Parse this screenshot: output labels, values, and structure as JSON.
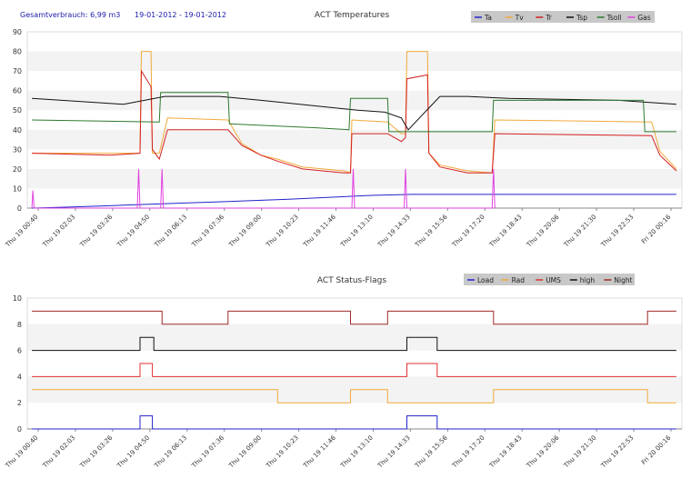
{
  "header": {
    "consumption": "Gesamtverbrauch: 6,99 m3",
    "date_range": "19-01-2012 - 19-01-2012"
  },
  "colors": {
    "Ta": "#2222cc",
    "Tv": "#f2a93b",
    "Tr": "#d42020",
    "Tsp": "#111111",
    "Tsoll": "#2d7a2d",
    "Gas": "#e040e0",
    "Load": "#2222cc",
    "Rad": "#f2a93b",
    "UMS": "#e03030",
    "high": "#111111",
    "Night": "#a02828",
    "band": "#f3f3f3",
    "legend_bg": "#c8c8c8"
  },
  "chart_data": [
    {
      "type": "line",
      "title": "ACT Temperatures",
      "ylim": [
        0,
        90
      ],
      "yticks": [
        0,
        10,
        20,
        30,
        40,
        50,
        60,
        70,
        80,
        90
      ],
      "xlim": [
        0.5,
        24.3
      ],
      "xticks": [
        "Thu 19 00:40",
        "Thu 19 02:03",
        "Thu 19 03:26",
        "Thu 19 04:50",
        "Thu 19 06:13",
        "Thu 19 07:36",
        "Thu 19 09:00",
        "Thu 19 10:23",
        "Thu 19 11:46",
        "Thu 19 13:10",
        "Thu 19 14:33",
        "Thu 19 15:56",
        "Thu 19 17:20",
        "Thu 19 18:43",
        "Thu 19 20:06",
        "Thu 19 21:30",
        "Thu 19 22:53",
        "Fri 20 00:16"
      ],
      "legend": [
        "Ta",
        "Tv",
        "Tr",
        "Tsp",
        "Tsoll",
        "Gas"
      ],
      "legend_position": "top-right",
      "grid": "horizontal bands",
      "series": [
        {
          "name": "Ta",
          "values": [
            [
              0.67,
              0
            ],
            [
              2.0,
              0.5
            ],
            [
              4.0,
              1.5
            ],
            [
              6.0,
              2.5
            ],
            [
              8.0,
              3.5
            ],
            [
              10.0,
              4.5
            ],
            [
              11.5,
              5.5
            ],
            [
              13.0,
              6.5
            ],
            [
              14.5,
              7
            ],
            [
              16.0,
              7
            ],
            [
              18.0,
              7
            ],
            [
              20.0,
              7
            ],
            [
              22.0,
              7
            ],
            [
              24.1,
              7
            ]
          ]
        },
        {
          "name": "Tv",
          "values": [
            [
              0.67,
              28
            ],
            [
              3.5,
              28
            ],
            [
              4.6,
              28
            ],
            [
              4.65,
              80
            ],
            [
              5.0,
              80
            ],
            [
              5.05,
              28
            ],
            [
              5.3,
              28
            ],
            [
              5.6,
              46
            ],
            [
              7.8,
              45
            ],
            [
              8.3,
              33
            ],
            [
              9.0,
              27
            ],
            [
              9.6,
              25
            ],
            [
              10.5,
              21
            ],
            [
              12.0,
              19
            ],
            [
              12.25,
              18
            ],
            [
              12.3,
              45
            ],
            [
              13.6,
              44
            ],
            [
              14.1,
              38
            ],
            [
              14.25,
              38
            ],
            [
              14.3,
              80
            ],
            [
              15.05,
              80
            ],
            [
              15.1,
              28
            ],
            [
              15.5,
              22
            ],
            [
              16.5,
              19
            ],
            [
              17.4,
              18
            ],
            [
              17.5,
              45
            ],
            [
              23.2,
              44
            ],
            [
              23.5,
              29
            ],
            [
              24.1,
              20
            ]
          ]
        },
        {
          "name": "Tr",
          "values": [
            [
              0.67,
              28
            ],
            [
              3.5,
              27
            ],
            [
              4.6,
              28
            ],
            [
              4.65,
              70
            ],
            [
              5.0,
              62
            ],
            [
              5.05,
              30
            ],
            [
              5.3,
              25
            ],
            [
              5.6,
              40
            ],
            [
              7.8,
              40
            ],
            [
              8.3,
              32
            ],
            [
              9.0,
              27
            ],
            [
              9.6,
              24
            ],
            [
              10.5,
              20
            ],
            [
              12.0,
              18
            ],
            [
              12.25,
              18
            ],
            [
              12.3,
              38
            ],
            [
              13.6,
              38
            ],
            [
              14.1,
              34
            ],
            [
              14.25,
              36
            ],
            [
              14.3,
              66
            ],
            [
              15.05,
              68
            ],
            [
              15.1,
              28
            ],
            [
              15.5,
              21
            ],
            [
              16.5,
              18
            ],
            [
              17.4,
              18
            ],
            [
              17.5,
              38
            ],
            [
              23.2,
              37
            ],
            [
              23.5,
              27
            ],
            [
              24.1,
              19
            ]
          ]
        },
        {
          "name": "Tsp",
          "values": [
            [
              0.67,
              56
            ],
            [
              4.0,
              53
            ],
            [
              5.5,
              57
            ],
            [
              7.5,
              57
            ],
            [
              9.0,
              55
            ],
            [
              12.5,
              50
            ],
            [
              13.5,
              49
            ],
            [
              14.1,
              46
            ],
            [
              14.35,
              40
            ],
            [
              15.5,
              57
            ],
            [
              16.5,
              57
            ],
            [
              18.0,
              56
            ],
            [
              22.0,
              55
            ],
            [
              24.1,
              53
            ]
          ]
        },
        {
          "name": "Tsoll",
          "values": [
            [
              0.67,
              45
            ],
            [
              5.3,
              44
            ],
            [
              5.35,
              59
            ],
            [
              7.8,
              59
            ],
            [
              7.85,
              43
            ],
            [
              11.0,
              41
            ],
            [
              12.2,
              40
            ],
            [
              12.25,
              56
            ],
            [
              13.6,
              56
            ],
            [
              13.65,
              39
            ],
            [
              17.4,
              39
            ],
            [
              17.45,
              55
            ],
            [
              22.9,
              55
            ],
            [
              22.95,
              39
            ],
            [
              24.1,
              39
            ]
          ]
        },
        {
          "name": "Gas",
          "values": [
            [
              0.67,
              0
            ],
            [
              0.7,
              9
            ],
            [
              0.75,
              0
            ],
            [
              4.5,
              0
            ],
            [
              4.55,
              20
            ],
            [
              4.6,
              0
            ],
            [
              5.35,
              0
            ],
            [
              5.4,
              20
            ],
            [
              5.45,
              0
            ],
            [
              12.3,
              0
            ],
            [
              12.35,
              20
            ],
            [
              12.4,
              0
            ],
            [
              14.2,
              0
            ],
            [
              14.25,
              20
            ],
            [
              14.3,
              0
            ],
            [
              17.4,
              0
            ],
            [
              17.45,
              20
            ],
            [
              17.5,
              0
            ]
          ]
        }
      ]
    },
    {
      "type": "line",
      "title": "ACT Status-Flags",
      "ylim": [
        0,
        10
      ],
      "yticks": [
        0,
        2,
        4,
        6,
        8,
        10
      ],
      "xlim": [
        0.5,
        24.3
      ],
      "xticks": [
        "Thu 19 00:40",
        "Thu 19 02:03",
        "Thu 19 03:26",
        "Thu 19 04:50",
        "Thu 19 06:13",
        "Thu 19 07:36",
        "Thu 19 09:00",
        "Thu 19 10:23",
        "Thu 19 11:46",
        "Thu 19 13:10",
        "Thu 19 14:33",
        "Thu 19 15:56",
        "Thu 19 17:20",
        "Thu 19 18:43",
        "Thu 19 20:06",
        "Thu 19 21:30",
        "Thu 19 22:53",
        "Fri 20 00:16"
      ],
      "legend": [
        "Load",
        "Rad",
        "UMS",
        "high",
        "Night"
      ],
      "legend_position": "top-right",
      "grid": "horizontal bands",
      "series": [
        {
          "name": "Load",
          "values": [
            [
              0.67,
              0
            ],
            [
              4.6,
              0
            ],
            [
              4.6,
              1
            ],
            [
              5.05,
              1
            ],
            [
              5.05,
              0
            ],
            [
              14.3,
              0
            ],
            [
              14.3,
              1
            ],
            [
              15.4,
              1
            ],
            [
              15.4,
              0
            ],
            [
              24.1,
              0
            ]
          ]
        },
        {
          "name": "Rad",
          "values": [
            [
              0.67,
              3
            ],
            [
              9.6,
              3
            ],
            [
              9.6,
              2
            ],
            [
              12.25,
              2
            ],
            [
              12.25,
              3
            ],
            [
              13.6,
              3
            ],
            [
              13.6,
              2
            ],
            [
              17.45,
              2
            ],
            [
              17.45,
              3
            ],
            [
              23.05,
              3
            ],
            [
              23.05,
              2
            ],
            [
              24.1,
              2
            ]
          ]
        },
        {
          "name": "UMS",
          "values": [
            [
              0.67,
              4
            ],
            [
              4.6,
              4
            ],
            [
              4.6,
              5
            ],
            [
              5.05,
              5
            ],
            [
              5.05,
              4
            ],
            [
              14.3,
              4
            ],
            [
              14.3,
              5
            ],
            [
              15.4,
              5
            ],
            [
              15.4,
              4
            ],
            [
              24.1,
              4
            ]
          ]
        },
        {
          "name": "high",
          "values": [
            [
              0.67,
              6
            ],
            [
              4.6,
              6
            ],
            [
              4.6,
              7
            ],
            [
              5.1,
              7
            ],
            [
              5.1,
              6
            ],
            [
              14.3,
              6
            ],
            [
              14.3,
              7
            ],
            [
              15.4,
              7
            ],
            [
              15.4,
              6
            ],
            [
              24.1,
              6
            ]
          ]
        },
        {
          "name": "Night",
          "values": [
            [
              0.67,
              9
            ],
            [
              5.4,
              9
            ],
            [
              5.4,
              8
            ],
            [
              7.8,
              8
            ],
            [
              7.8,
              9
            ],
            [
              12.25,
              9
            ],
            [
              12.25,
              8
            ],
            [
              13.6,
              8
            ],
            [
              13.6,
              9
            ],
            [
              17.45,
              9
            ],
            [
              17.45,
              8
            ],
            [
              23.05,
              8
            ],
            [
              23.05,
              9
            ],
            [
              24.1,
              9
            ]
          ]
        }
      ]
    }
  ]
}
